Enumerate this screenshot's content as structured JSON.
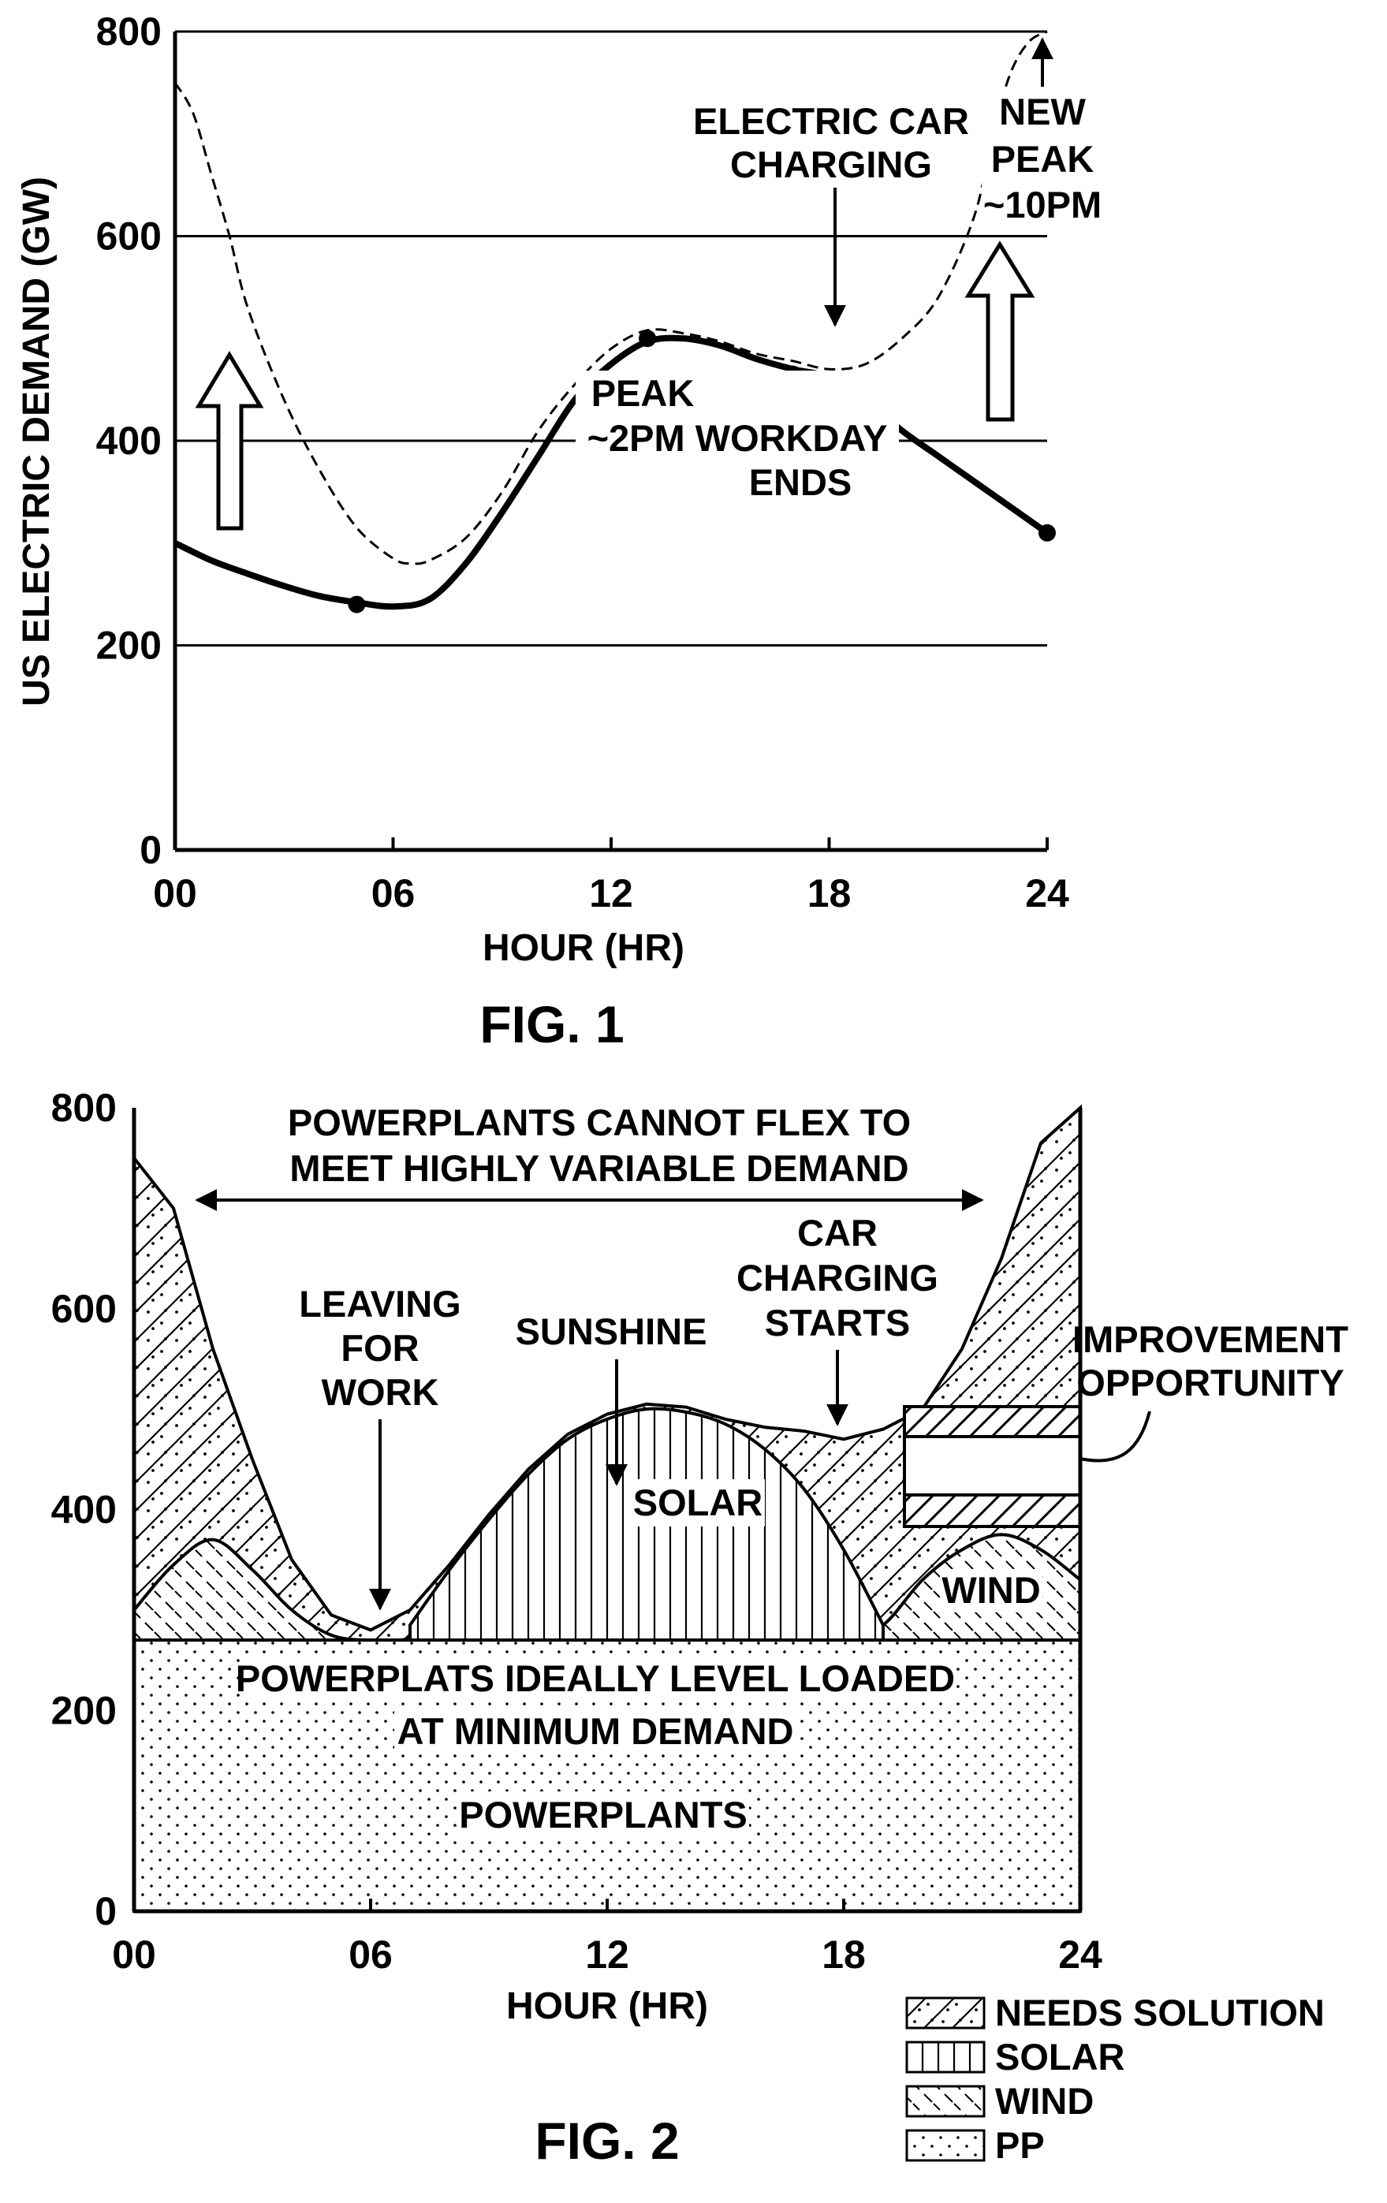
{
  "colors": {
    "ink": "#000000",
    "paper": "#ffffff"
  },
  "chart_data": [
    {
      "type": "line",
      "caption": "FIG. 1",
      "xlabel": "HOUR (HR)",
      "ylabel": "US ELECTRIC DEMAND (GW)",
      "xticks": [
        "00",
        "06",
        "12",
        "18",
        "24"
      ],
      "yticks": [
        "0",
        "200",
        "400",
        "600",
        "800"
      ],
      "xlim": [
        0,
        24
      ],
      "ylim": [
        0,
        800
      ],
      "grid": "horizontal lines at 200, 400, 600, 800",
      "series": [
        {
          "style": "solid-thick",
          "x": [
            0,
            1,
            2,
            3,
            4,
            5,
            6,
            7,
            8,
            9,
            10,
            11,
            12,
            13,
            14,
            15,
            16,
            17,
            18,
            19,
            20,
            21,
            22,
            23,
            24
          ],
          "values": [
            300,
            283,
            270,
            258,
            248,
            242,
            238,
            245,
            280,
            330,
            385,
            440,
            475,
            497,
            500,
            493,
            480,
            470,
            462,
            440,
            410,
            385,
            360,
            335,
            310
          ],
          "markers_x": [
            5,
            13,
            17,
            24
          ],
          "markers_y": [
            240,
            500,
            465,
            310
          ]
        },
        {
          "style": "dashed",
          "x": [
            0,
            0.5,
            1,
            1.5,
            2,
            3,
            4,
            5,
            6,
            6.5,
            7,
            8,
            9,
            10,
            11,
            12,
            13,
            14,
            15,
            16,
            17,
            18,
            19,
            20,
            21,
            22,
            22.5,
            23,
            23.5,
            24
          ],
          "values": [
            750,
            720,
            660,
            600,
            530,
            440,
            370,
            315,
            285,
            280,
            283,
            305,
            350,
            410,
            455,
            490,
            508,
            505,
            497,
            485,
            478,
            470,
            475,
            500,
            540,
            620,
            700,
            760,
            790,
            800
          ]
        }
      ],
      "annotations": [
        {
          "lines": [
            "ELECTRIC CAR",
            "CHARGING"
          ]
        },
        {
          "lines": [
            "NEW",
            "PEAK",
            "~10PM"
          ]
        },
        {
          "lines": [
            "PEAK",
            "~2PM WORKDAY",
            "ENDS"
          ]
        }
      ]
    },
    {
      "type": "area",
      "caption": "FIG. 2",
      "xlabel": "HOUR (HR)",
      "xticks": [
        "00",
        "06",
        "12",
        "18",
        "24"
      ],
      "yticks": [
        "0",
        "200",
        "400",
        "600",
        "800"
      ],
      "xlim": [
        0,
        24
      ],
      "ylim": [
        0,
        800
      ],
      "pp_level": 270,
      "layers": {
        "total_demand": {
          "x": [
            0,
            1,
            2,
            3,
            4,
            5,
            6,
            7,
            8,
            9,
            10,
            11,
            12,
            13,
            14,
            15,
            16,
            17,
            18,
            19,
            20,
            21,
            22,
            23,
            24
          ],
          "values": [
            750,
            700,
            560,
            450,
            350,
            295,
            280,
            300,
            345,
            395,
            440,
            475,
            495,
            505,
            502,
            490,
            482,
            478,
            470,
            480,
            500,
            560,
            650,
            765,
            800
          ]
        },
        "wind": {
          "x": [
            0,
            1,
            2,
            3,
            4,
            5,
            6,
            7,
            8,
            9,
            10,
            11,
            12,
            13,
            14,
            15,
            16,
            17,
            18,
            19,
            20,
            21,
            22,
            23,
            24
          ],
          "values": [
            300,
            345,
            370,
            340,
            300,
            275,
            270,
            272,
            295,
            330,
            365,
            380,
            345,
            300,
            275,
            270,
            270,
            270,
            270,
            285,
            330,
            360,
            375,
            360,
            330
          ]
        },
        "solar": {
          "x": [
            7,
            8,
            9,
            10,
            11,
            12,
            13,
            14,
            15,
            16,
            17,
            18,
            19
          ],
          "values": [
            285,
            340,
            390,
            435,
            470,
            490,
            500,
            497,
            485,
            460,
            420,
            360,
            285
          ]
        }
      },
      "legend": [
        "NEEDS SOLUTION",
        "SOLAR",
        "WIND",
        "PP"
      ],
      "annotations": {
        "top": [
          "POWERPLANTS CANNOT FLEX TO",
          "MEET HIGHLY VARIABLE DEMAND"
        ],
        "leaving": [
          "LEAVING",
          "FOR",
          "WORK"
        ],
        "sunshine": "SUNSHINE",
        "car": [
          "CAR",
          "CHARGING",
          "STARTS"
        ],
        "improvement": [
          "IMPROVEMENT",
          "OPPORTUNITY"
        ],
        "solar_label": "SOLAR",
        "wind_label": "WIND",
        "pp_label_1": "POWERPLATS IDEALLY LEVEL LOADED",
        "pp_label_2": "AT MINIMUM DEMAND",
        "pp_label_3": "POWERPLANTS"
      }
    }
  ]
}
